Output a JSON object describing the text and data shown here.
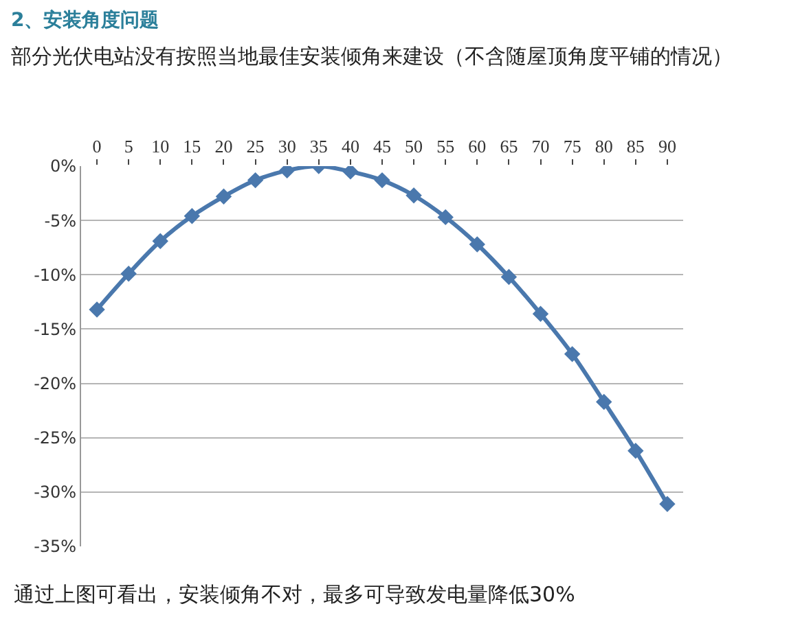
{
  "chart_data": {
    "type": "line",
    "title": "2、安装角度问题",
    "subtitle": "部分光伏电站没有按照当地最佳安装倾角来建设（不含随屋顶角度平铺的情况）",
    "annotations": [
      "通过上图可看出，安装倾角不对，最多可导致发电量降低30%"
    ],
    "x": [
      0,
      5,
      10,
      15,
      20,
      25,
      30,
      35,
      40,
      45,
      50,
      55,
      60,
      65,
      70,
      75,
      80,
      85,
      90
    ],
    "series": [
      {
        "color": "#4a78ad",
        "values": [
          -13.2,
          -9.9,
          -6.9,
          -4.6,
          -2.8,
          -1.3,
          -0.4,
          0,
          -0.5,
          -1.3,
          -2.7,
          -4.7,
          -7.2,
          -10.2,
          -13.6,
          -17.3,
          -21.7,
          -26.2,
          -31.1
        ]
      }
    ],
    "xlim": [
      -2.5,
      92.5
    ],
    "xticks": [
      0,
      5,
      10,
      15,
      20,
      25,
      30,
      35,
      40,
      45,
      50,
      55,
      60,
      65,
      70,
      75,
      80,
      85,
      90
    ],
    "ylim": [
      -35,
      0
    ],
    "yticks": [
      {
        "value": 0,
        "label": "0%"
      },
      {
        "value": -5,
        "label": "-5%"
      },
      {
        "value": -10,
        "label": "-10%"
      },
      {
        "value": -15,
        "label": "-15%"
      },
      {
        "value": -20,
        "label": "-20%"
      },
      {
        "value": -25,
        "label": "-25%"
      },
      {
        "value": -30,
        "label": "-30%"
      },
      {
        "value": -35,
        "label": "-35%"
      }
    ],
    "grid": "y",
    "marker": "diamond",
    "line_style": "solid"
  }
}
